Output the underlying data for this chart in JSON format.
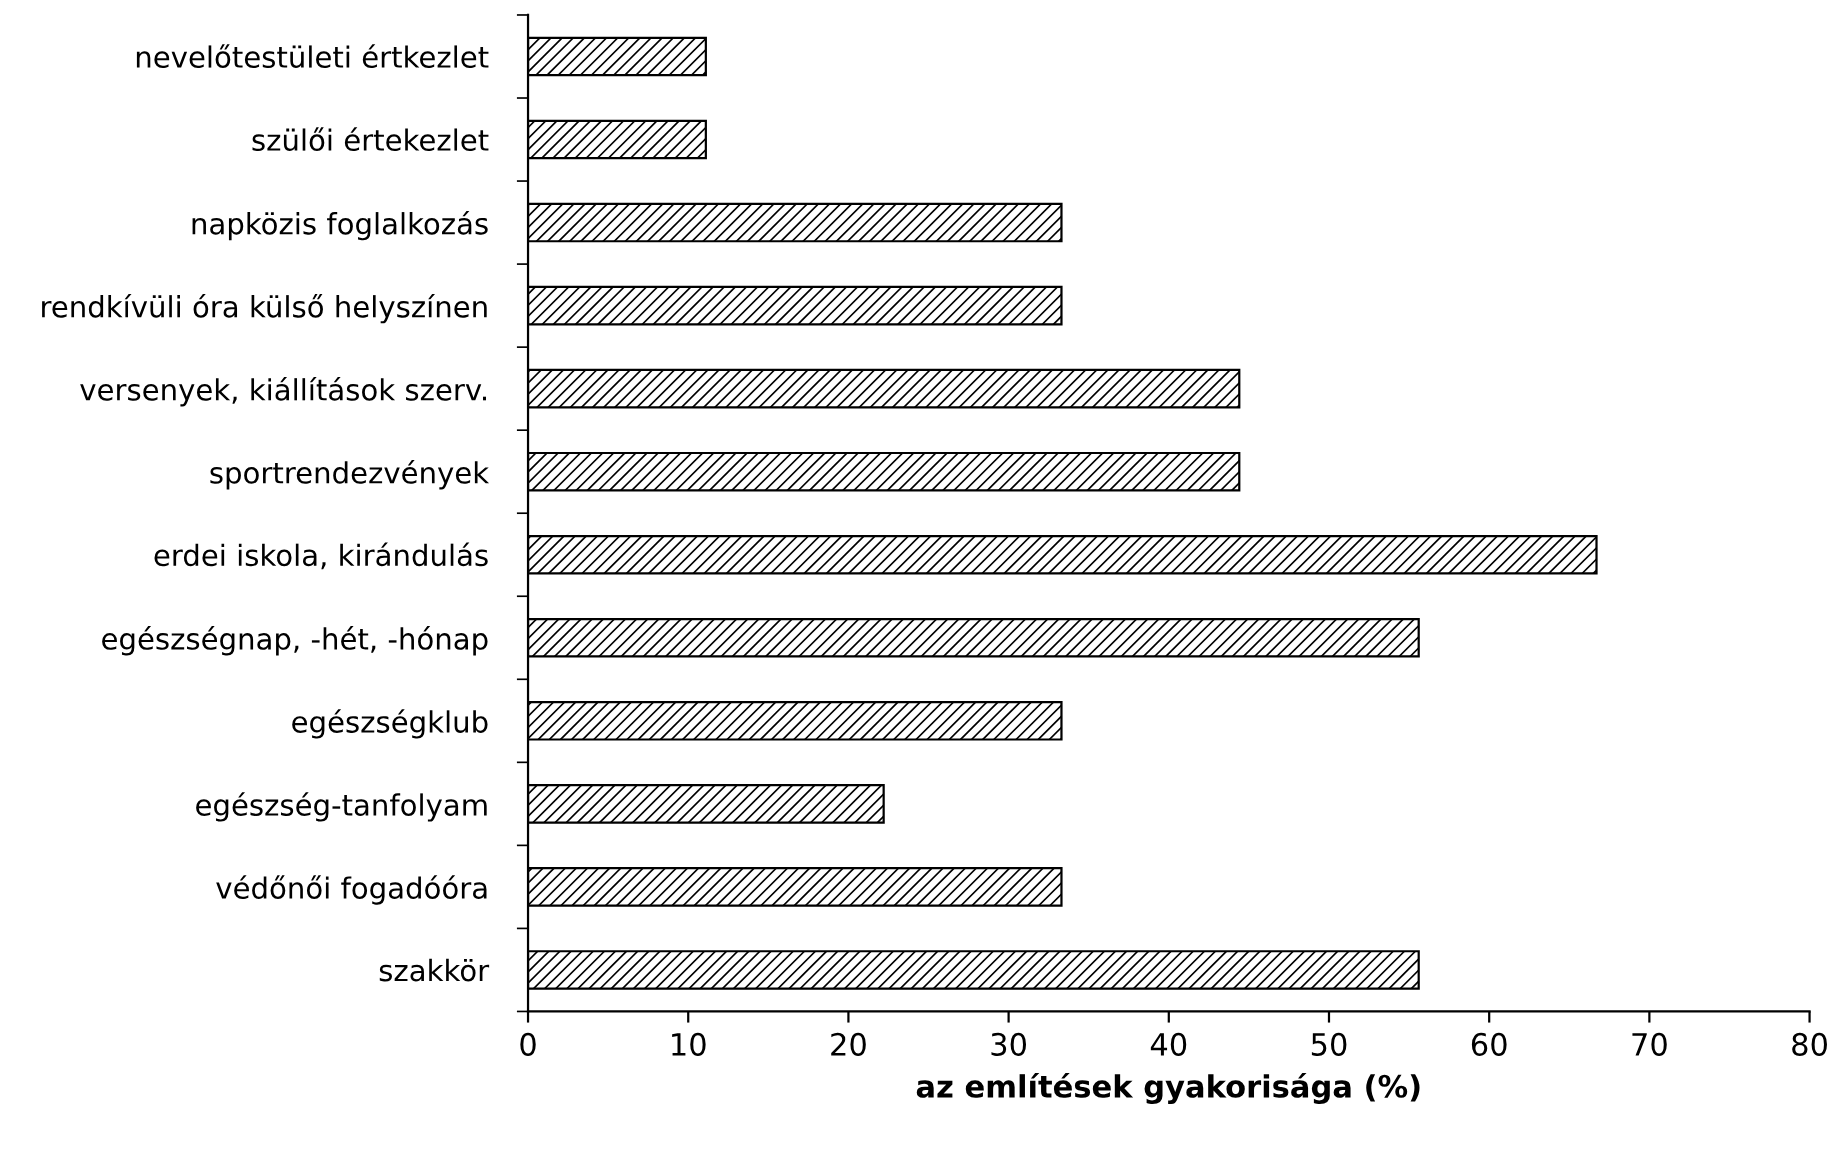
{
  "chart_data": {
    "type": "bar",
    "orientation": "horizontal",
    "xlabel": "az említések gyakorisága (%)",
    "categories": [
      "nevelőtestületi értkezlet",
      "szülői értekezlet",
      "napközis foglalkozás",
      "rendkívüli óra külső helyszínen",
      "versenyek, kiállítások szerv.",
      "sportrendezvények",
      "erdei iskola, kirándulás",
      "egészségnap, -hét, -hónap",
      "egészségklub",
      "egészség-tanfolyam",
      "védőnői fogadóóra",
      "szakkör"
    ],
    "values": [
      11.1,
      11.1,
      33.3,
      33.3,
      44.4,
      44.4,
      66.7,
      55.6,
      33.3,
      22.2,
      33.3,
      55.6
    ],
    "color": "#000000",
    "xlim": [
      0,
      80
    ],
    "xticks": [
      0,
      10,
      20,
      30,
      40,
      50,
      60,
      70,
      80
    ],
    "grid": false,
    "legend": false
  }
}
